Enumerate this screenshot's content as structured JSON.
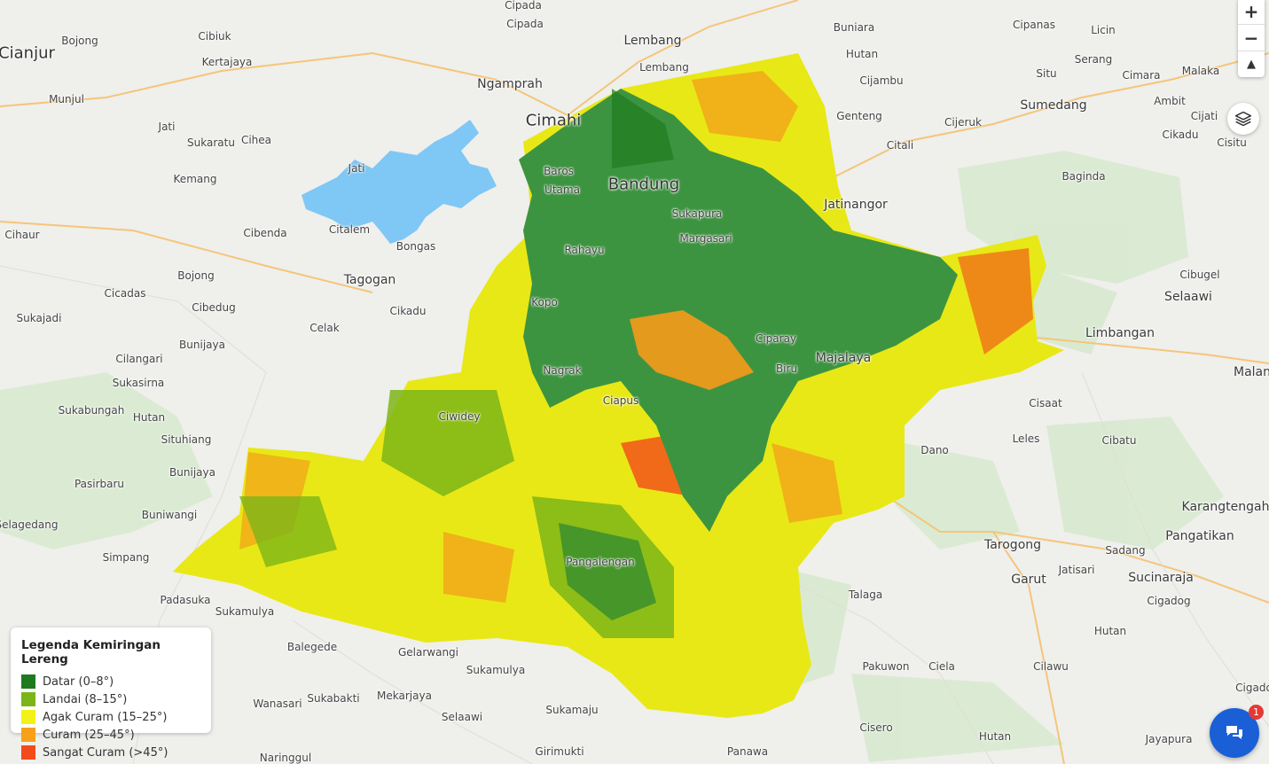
{
  "map": {
    "places": [
      {
        "name": "Cianjur",
        "cls": "big"
      },
      {
        "name": "Bojong",
        "cls": ""
      },
      {
        "name": "Cibiuk",
        "cls": ""
      },
      {
        "name": "Kertajaya",
        "cls": ""
      },
      {
        "name": "Munjul",
        "cls": ""
      },
      {
        "name": "Jati",
        "cls": ""
      },
      {
        "name": "Sukaratu",
        "cls": ""
      },
      {
        "name": "Cihea",
        "cls": ""
      },
      {
        "name": "Jati",
        "cls": ""
      },
      {
        "name": "Kemang",
        "cls": ""
      },
      {
        "name": "Cihaur",
        "cls": ""
      },
      {
        "name": "Citalem",
        "cls": ""
      },
      {
        "name": "Cibenda",
        "cls": ""
      },
      {
        "name": "Bongas",
        "cls": ""
      },
      {
        "name": "Tagogan",
        "cls": "med"
      },
      {
        "name": "Bojong",
        "cls": ""
      },
      {
        "name": "Cicadas",
        "cls": ""
      },
      {
        "name": "Cibedug",
        "cls": ""
      },
      {
        "name": "Cikadu",
        "cls": ""
      },
      {
        "name": "Sukajadi",
        "cls": ""
      },
      {
        "name": "Celak",
        "cls": ""
      },
      {
        "name": "Bunijaya",
        "cls": ""
      },
      {
        "name": "Cilangari",
        "cls": ""
      },
      {
        "name": "Sukasirna",
        "cls": ""
      },
      {
        "name": "Sukabungah",
        "cls": ""
      },
      {
        "name": "Hutan",
        "cls": ""
      },
      {
        "name": "Situhiang",
        "cls": ""
      },
      {
        "name": "Bunijaya",
        "cls": ""
      },
      {
        "name": "Pasirbaru",
        "cls": ""
      },
      {
        "name": "Buniwangi",
        "cls": ""
      },
      {
        "name": "Selagedang",
        "cls": ""
      },
      {
        "name": "Simpang",
        "cls": ""
      },
      {
        "name": "Padasuka",
        "cls": ""
      },
      {
        "name": "Sukamulya",
        "cls": ""
      },
      {
        "name": "Balegede",
        "cls": ""
      },
      {
        "name": "Gelarwangi",
        "cls": ""
      },
      {
        "name": "Sukamulya",
        "cls": ""
      },
      {
        "name": "Mekarjaya",
        "cls": ""
      },
      {
        "name": "Sukabakti",
        "cls": ""
      },
      {
        "name": "Wanasari",
        "cls": ""
      },
      {
        "name": "Selaawi",
        "cls": ""
      },
      {
        "name": "Sukamaju",
        "cls": ""
      },
      {
        "name": "Girimukti",
        "cls": ""
      },
      {
        "name": "Naringgul",
        "cls": ""
      },
      {
        "name": "Cipada",
        "cls": ""
      },
      {
        "name": "Cipada",
        "cls": ""
      },
      {
        "name": "Lembang",
        "cls": "med"
      },
      {
        "name": "Lembang",
        "cls": ""
      },
      {
        "name": "Ngamprah",
        "cls": "med"
      },
      {
        "name": "Cimahi",
        "cls": "big"
      },
      {
        "name": "Buniara",
        "cls": ""
      },
      {
        "name": "Hutan",
        "cls": ""
      },
      {
        "name": "Cijambu",
        "cls": ""
      },
      {
        "name": "Genteng",
        "cls": ""
      },
      {
        "name": "Citali",
        "cls": ""
      },
      {
        "name": "Jatinangor",
        "cls": "med"
      },
      {
        "name": "Cipanas",
        "cls": ""
      },
      {
        "name": "Licin",
        "cls": ""
      },
      {
        "name": "Situ",
        "cls": ""
      },
      {
        "name": "Serang",
        "cls": ""
      },
      {
        "name": "Cimara",
        "cls": ""
      },
      {
        "name": "Malaka",
        "cls": ""
      },
      {
        "name": "Cijeruk",
        "cls": ""
      },
      {
        "name": "Sumedang",
        "cls": "med"
      },
      {
        "name": "Ambit",
        "cls": ""
      },
      {
        "name": "Cijati",
        "cls": ""
      },
      {
        "name": "Cikadu",
        "cls": ""
      },
      {
        "name": "Cisitu",
        "cls": ""
      },
      {
        "name": "Baginda",
        "cls": ""
      },
      {
        "name": "Cibugel",
        "cls": ""
      },
      {
        "name": "Selaawi",
        "cls": "med"
      },
      {
        "name": "Limbangan",
        "cls": "med"
      },
      {
        "name": "Malan",
        "cls": "med"
      },
      {
        "name": "Cisaat",
        "cls": ""
      },
      {
        "name": "Leles",
        "cls": ""
      },
      {
        "name": "Cibatu",
        "cls": ""
      },
      {
        "name": "Dano",
        "cls": ""
      },
      {
        "name": "Karangtengah",
        "cls": "med"
      },
      {
        "name": "Pangatikan",
        "cls": "med"
      },
      {
        "name": "Tarogong",
        "cls": "med"
      },
      {
        "name": "Sadang",
        "cls": ""
      },
      {
        "name": "Jatisari",
        "cls": ""
      },
      {
        "name": "Garut",
        "cls": "med"
      },
      {
        "name": "Sucinaraja",
        "cls": "med"
      },
      {
        "name": "Cigadog",
        "cls": ""
      },
      {
        "name": "Talaga",
        "cls": ""
      },
      {
        "name": "Hutan",
        "cls": ""
      },
      {
        "name": "Pakuwon",
        "cls": ""
      },
      {
        "name": "Ciela",
        "cls": ""
      },
      {
        "name": "Cilawu",
        "cls": ""
      },
      {
        "name": "Cigado",
        "cls": ""
      },
      {
        "name": "Cisero",
        "cls": ""
      },
      {
        "name": "Hutan",
        "cls": ""
      },
      {
        "name": "Jayapura",
        "cls": ""
      },
      {
        "name": "Panawa",
        "cls": ""
      },
      {
        "name": "Bandung",
        "cls": "big"
      },
      {
        "name": "Baros",
        "cls": ""
      },
      {
        "name": "Utama",
        "cls": ""
      },
      {
        "name": "Sukapura",
        "cls": ""
      },
      {
        "name": "Margasari",
        "cls": ""
      },
      {
        "name": "Rahayu",
        "cls": ""
      },
      {
        "name": "Kopo",
        "cls": ""
      },
      {
        "name": "Ciparay",
        "cls": ""
      },
      {
        "name": "Majalaya",
        "cls": "med"
      },
      {
        "name": "Biru",
        "cls": ""
      },
      {
        "name": "Nagrak",
        "cls": ""
      },
      {
        "name": "Ciapus",
        "cls": ""
      },
      {
        "name": "Ciwidey",
        "cls": ""
      },
      {
        "name": "Pangalengan",
        "cls": ""
      }
    ]
  },
  "controls": {
    "zoom_in": "+",
    "zoom_out": "−",
    "reset_north": "▲"
  },
  "legend": {
    "title": "Legenda Kemiringan Lereng",
    "items": [
      {
        "label": "Datar (0–8°)",
        "color": "#1e7a1e"
      },
      {
        "label": "Landai (8–15°)",
        "color": "#7cb518"
      },
      {
        "label": "Agak Curam (15–25°)",
        "color": "#f2f218"
      },
      {
        "label": "Curam (25–45°)",
        "color": "#f7a019"
      },
      {
        "label": "Sangat Curam (>45°)",
        "color": "#f24a1a"
      }
    ]
  },
  "chat": {
    "badge": "1"
  }
}
